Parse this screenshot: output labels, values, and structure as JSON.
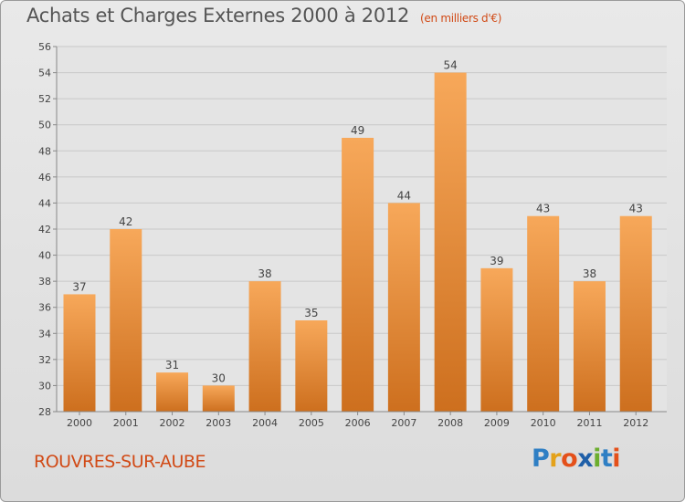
{
  "title": "Achats et Charges Externes 2000 à 2012",
  "subtitle": "(en milliers d'€)",
  "place": "ROUVRES-SUR-AUBE",
  "brand": {
    "letters": [
      "P",
      "r",
      "o",
      "x",
      "i",
      "t",
      "i"
    ],
    "colors": [
      "#2f7fc4",
      "#e4a21a",
      "#e4501a",
      "#1f5fa8",
      "#6cae2e",
      "#2f7fc4",
      "#e4501a"
    ]
  },
  "colors": {
    "bar_top": "#f7a85a",
    "bar_bottom": "#cd6f1e",
    "grid": "#c8c8c8",
    "text": "#444444",
    "accent": "#d14a16"
  },
  "chart_data": {
    "type": "bar",
    "categories": [
      "2000",
      "2001",
      "2002",
      "2003",
      "2004",
      "2005",
      "2006",
      "2007",
      "2008",
      "2009",
      "2010",
      "2011",
      "2012"
    ],
    "values": [
      37,
      42,
      31,
      30,
      38,
      35,
      49,
      44,
      54,
      39,
      43,
      38,
      43
    ],
    "ylim": [
      28,
      56
    ],
    "yticks": [
      28,
      30,
      32,
      34,
      36,
      38,
      40,
      42,
      44,
      46,
      48,
      50,
      52,
      54,
      56
    ],
    "grid": true,
    "legend": false
  }
}
